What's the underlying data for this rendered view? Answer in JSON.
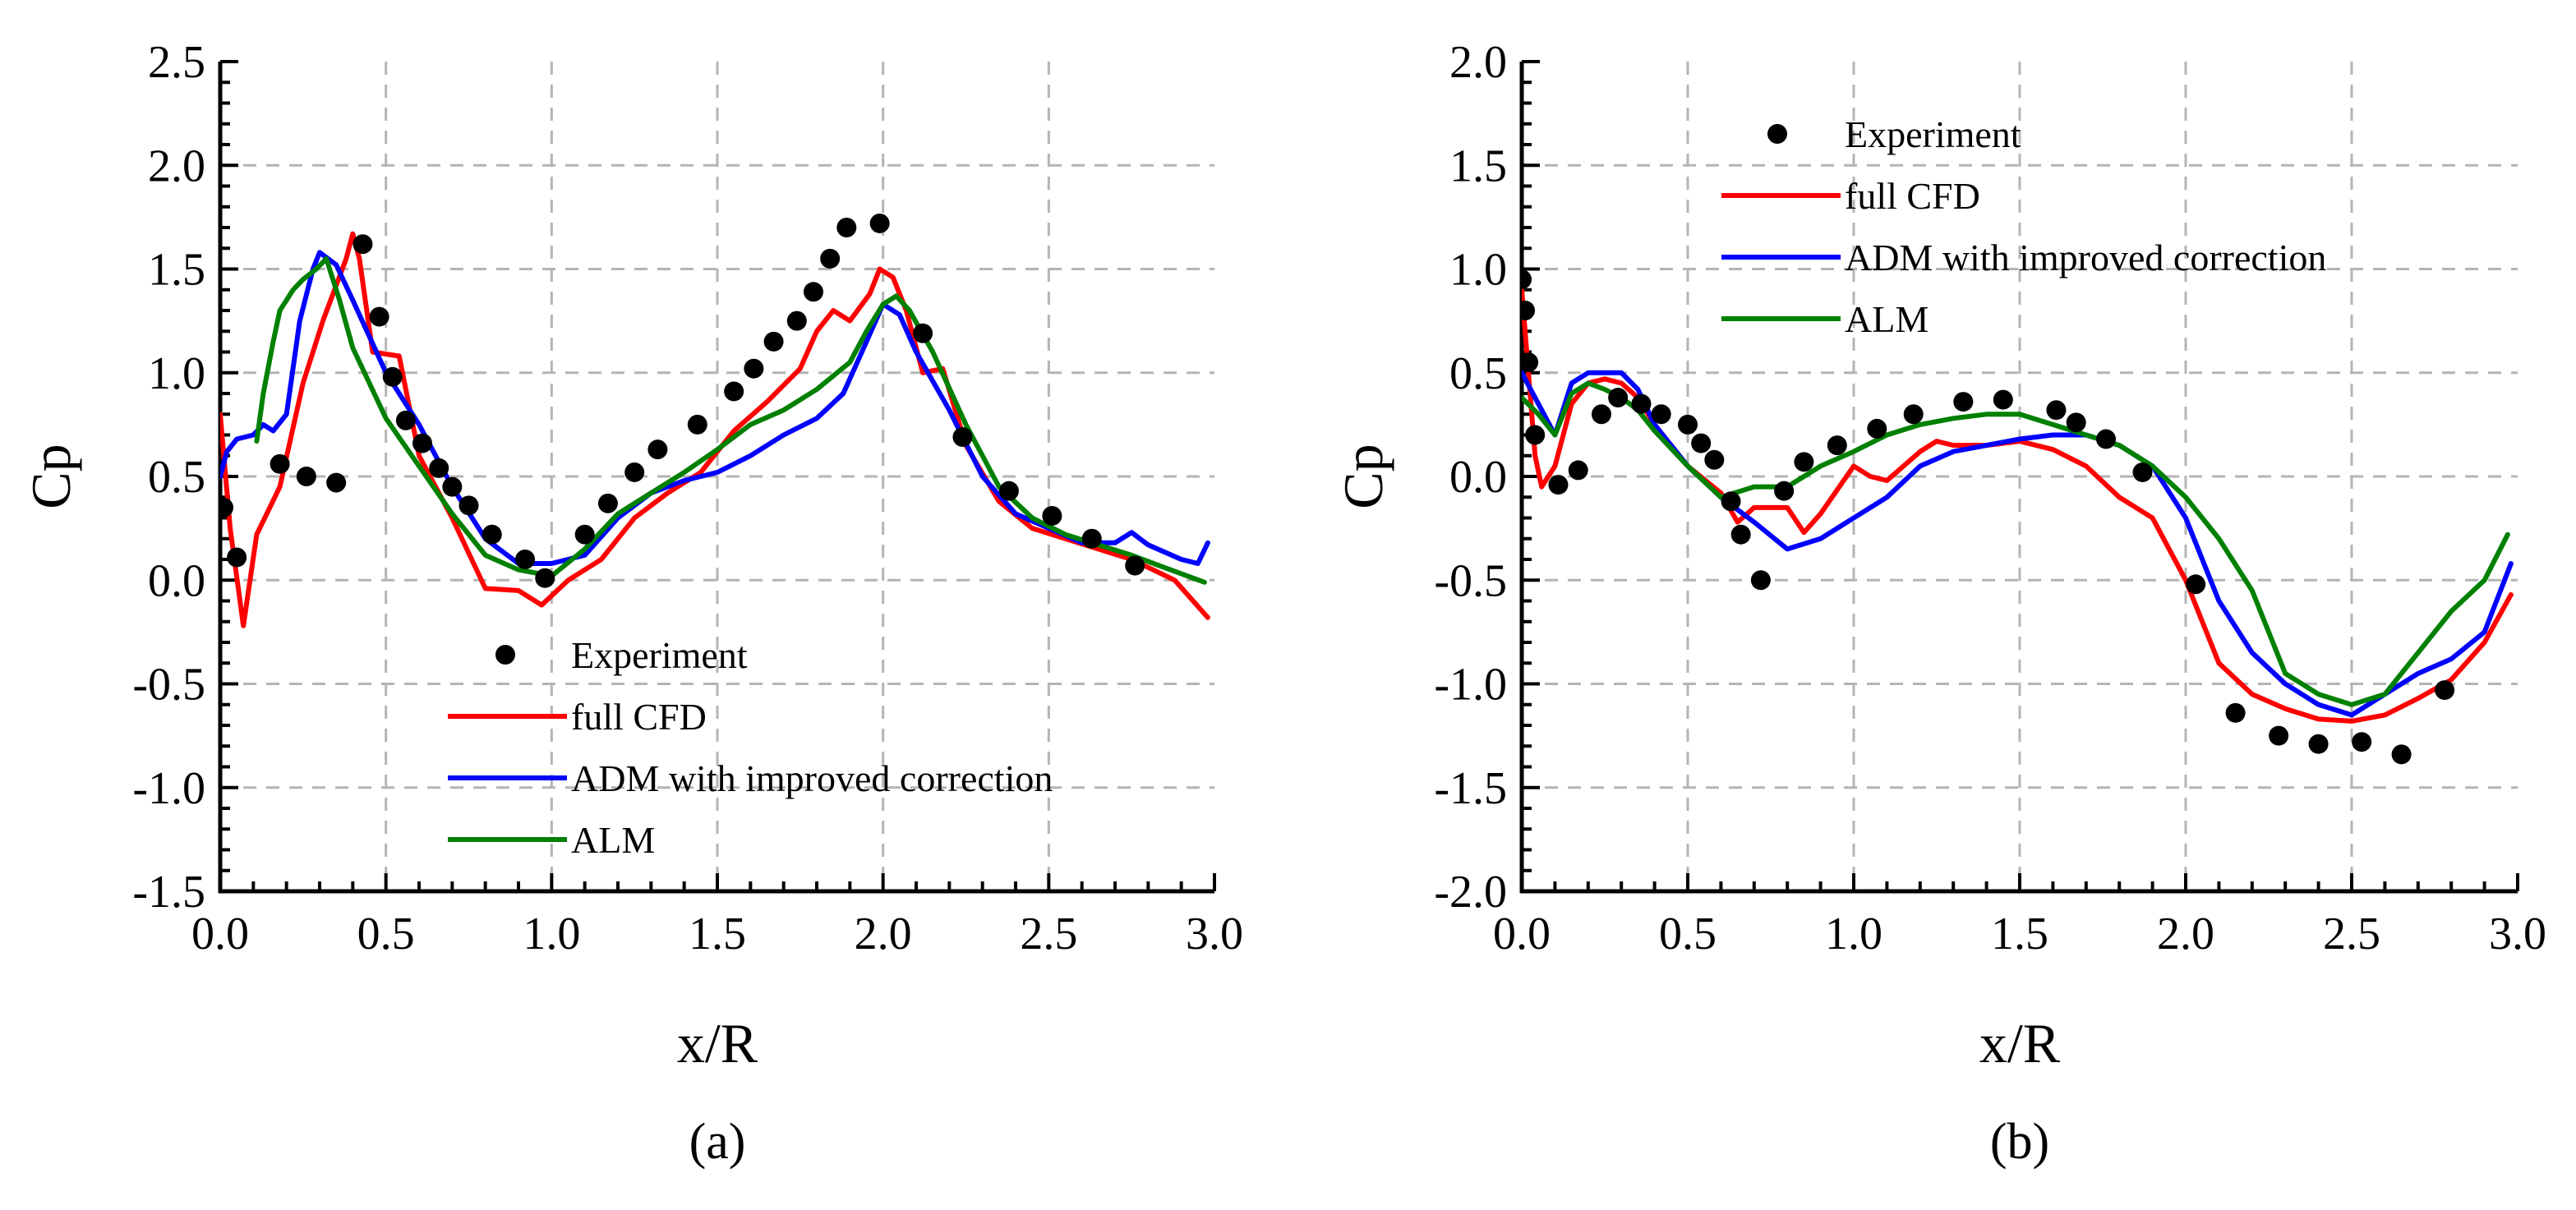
{
  "colors": {
    "experiment": "#000000",
    "full_cfd": "#ff0000",
    "adm": "#0000ff",
    "alm": "#008000",
    "grid": "#b4b4b4"
  },
  "chart_data": [
    {
      "type": "line",
      "panel_label": "(a)",
      "xlabel": "x/R",
      "ylabel": "Cp",
      "xlim": [
        0.0,
        3.0
      ],
      "ylim": [
        -1.5,
        2.5
      ],
      "xticks": [
        0.0,
        0.5,
        1.0,
        1.5,
        2.0,
        2.5,
        3.0
      ],
      "xtick_labels": [
        "0.0",
        "0.5",
        "1.0",
        "1.5",
        "2.0",
        "2.5",
        "3.0"
      ],
      "yticks": [
        -1.5,
        -1.0,
        -0.5,
        0.0,
        0.5,
        1.0,
        1.5,
        2.0,
        2.5
      ],
      "ytick_labels": [
        "-1.5",
        "-1.0",
        "-0.5",
        "0.0",
        "0.5",
        "1.0",
        "1.5",
        "2.0",
        "2.5"
      ],
      "grid": true,
      "legend_position": "bottom-center",
      "series": [
        {
          "name": "Experiment",
          "style": "markers",
          "x": [
            0.01,
            0.05,
            0.18,
            0.26,
            0.35,
            0.43,
            0.48,
            0.52,
            0.56,
            0.61,
            0.66,
            0.7,
            0.75,
            0.82,
            0.92,
            0.98,
            1.1,
            1.17,
            1.25,
            1.32,
            1.44,
            1.55,
            1.61,
            1.67,
            1.74,
            1.79,
            1.84,
            1.89,
            1.99,
            2.12,
            2.24,
            2.38,
            2.51,
            2.63,
            2.76
          ],
          "y": [
            0.35,
            0.11,
            0.56,
            0.5,
            0.47,
            1.62,
            1.27,
            0.98,
            0.77,
            0.66,
            0.54,
            0.45,
            0.36,
            0.22,
            0.1,
            0.01,
            0.22,
            0.37,
            0.52,
            0.63,
            0.75,
            0.91,
            1.02,
            1.15,
            1.25,
            1.39,
            1.55,
            1.7,
            1.72,
            1.19,
            0.69,
            0.43,
            0.31,
            0.2,
            0.07
          ]
        },
        {
          "name": "full CFD",
          "style": "line",
          "x": [
            0.0,
            0.03,
            0.07,
            0.11,
            0.18,
            0.25,
            0.31,
            0.38,
            0.4,
            0.42,
            0.46,
            0.54,
            0.6,
            0.7,
            0.8,
            0.9,
            0.97,
            1.05,
            1.15,
            1.25,
            1.35,
            1.45,
            1.55,
            1.65,
            1.75,
            1.8,
            1.85,
            1.9,
            1.96,
            1.99,
            2.03,
            2.07,
            2.12,
            2.18,
            2.25,
            2.35,
            2.45,
            2.55,
            2.65,
            2.75,
            2.88,
            2.98
          ],
          "y": [
            0.8,
            0.25,
            -0.22,
            0.22,
            0.45,
            0.95,
            1.25,
            1.55,
            1.67,
            1.55,
            1.1,
            1.08,
            0.6,
            0.3,
            -0.04,
            -0.05,
            -0.12,
            0.0,
            0.1,
            0.3,
            0.42,
            0.52,
            0.72,
            0.86,
            1.02,
            1.2,
            1.3,
            1.25,
            1.38,
            1.5,
            1.46,
            1.3,
            1.0,
            1.02,
            0.65,
            0.38,
            0.25,
            0.2,
            0.15,
            0.1,
            0.0,
            -0.18
          ]
        },
        {
          "name": "ADM with improved correction",
          "style": "line",
          "x": [
            0.0,
            0.02,
            0.05,
            0.1,
            0.13,
            0.16,
            0.2,
            0.24,
            0.28,
            0.3,
            0.35,
            0.4,
            0.5,
            0.6,
            0.7,
            0.8,
            0.9,
            1.0,
            1.1,
            1.2,
            1.3,
            1.4,
            1.5,
            1.6,
            1.7,
            1.8,
            1.88,
            1.95,
            2.0,
            2.05,
            2.1,
            2.2,
            2.3,
            2.4,
            2.5,
            2.6,
            2.7,
            2.75,
            2.8,
            2.9,
            2.95,
            2.98
          ],
          "y": [
            0.5,
            0.62,
            0.68,
            0.7,
            0.75,
            0.72,
            0.8,
            1.25,
            1.5,
            1.58,
            1.52,
            1.35,
            1.0,
            0.75,
            0.45,
            0.2,
            0.08,
            0.08,
            0.12,
            0.3,
            0.42,
            0.48,
            0.52,
            0.6,
            0.7,
            0.78,
            0.9,
            1.15,
            1.33,
            1.28,
            1.1,
            0.82,
            0.5,
            0.32,
            0.25,
            0.18,
            0.18,
            0.23,
            0.17,
            0.1,
            0.08,
            0.18
          ]
        },
        {
          "name": "ALM",
          "style": "line",
          "x": [
            0.11,
            0.13,
            0.16,
            0.18,
            0.2,
            0.22,
            0.25,
            0.29,
            0.32,
            0.36,
            0.4,
            0.45,
            0.5,
            0.6,
            0.7,
            0.8,
            0.9,
            1.0,
            1.1,
            1.2,
            1.3,
            1.4,
            1.5,
            1.6,
            1.7,
            1.8,
            1.9,
            1.95,
            2.0,
            2.04,
            2.08,
            2.15,
            2.25,
            2.35,
            2.45,
            2.55,
            2.65,
            2.75,
            2.85,
            2.97
          ],
          "y": [
            0.67,
            0.9,
            1.15,
            1.3,
            1.35,
            1.4,
            1.45,
            1.5,
            1.55,
            1.35,
            1.12,
            0.95,
            0.78,
            0.55,
            0.32,
            0.12,
            0.05,
            0.02,
            0.15,
            0.32,
            0.42,
            0.52,
            0.63,
            0.75,
            0.82,
            0.92,
            1.05,
            1.2,
            1.33,
            1.37,
            1.3,
            1.1,
            0.75,
            0.45,
            0.3,
            0.22,
            0.17,
            0.12,
            0.06,
            -0.01
          ]
        }
      ]
    },
    {
      "type": "line",
      "panel_label": "(b)",
      "xlabel": "x/R",
      "ylabel": "Cp",
      "xlim": [
        0.0,
        3.0
      ],
      "ylim": [
        -2.0,
        2.0
      ],
      "xticks": [
        0.0,
        0.5,
        1.0,
        1.5,
        2.0,
        2.5,
        3.0
      ],
      "xtick_labels": [
        "0.0",
        "0.5",
        "1.0",
        "1.5",
        "2.0",
        "2.5",
        "3.0"
      ],
      "yticks": [
        -2.0,
        -1.5,
        -1.0,
        -0.5,
        0.0,
        0.5,
        1.0,
        1.5,
        2.0
      ],
      "ytick_labels": [
        "-2.0",
        "-1.5",
        "-1.0",
        "-0.5",
        "0.0",
        "0.5",
        "1.0",
        "1.5",
        "2.0"
      ],
      "grid": true,
      "legend_position": "top-left",
      "series": [
        {
          "name": "Experiment",
          "style": "markers",
          "x": [
            0.0,
            0.01,
            0.02,
            0.04,
            0.11,
            0.17,
            0.24,
            0.29,
            0.36,
            0.42,
            0.5,
            0.54,
            0.58,
            0.63,
            0.66,
            0.72,
            0.79,
            0.85,
            0.95,
            1.07,
            1.18,
            1.33,
            1.45,
            1.61,
            1.67,
            1.76,
            1.87,
            2.03,
            2.15,
            2.28,
            2.4,
            2.53,
            2.65,
            2.78
          ],
          "y": [
            0.95,
            0.8,
            0.55,
            0.2,
            -0.04,
            0.03,
            0.3,
            0.38,
            0.35,
            0.3,
            0.25,
            0.16,
            0.08,
            -0.12,
            -0.28,
            -0.5,
            -0.07,
            0.07,
            0.15,
            0.23,
            0.3,
            0.36,
            0.37,
            0.32,
            0.26,
            0.18,
            0.02,
            -0.52,
            -1.14,
            -1.25,
            -1.29,
            -1.28,
            -1.34,
            -1.03
          ]
        },
        {
          "name": "full CFD",
          "style": "line",
          "x": [
            0.0,
            0.02,
            0.04,
            0.06,
            0.1,
            0.15,
            0.2,
            0.25,
            0.3,
            0.35,
            0.4,
            0.5,
            0.6,
            0.65,
            0.7,
            0.75,
            0.8,
            0.85,
            0.9,
            1.0,
            1.05,
            1.1,
            1.2,
            1.25,
            1.3,
            1.4,
            1.5,
            1.6,
            1.7,
            1.8,
            1.9,
            2.0,
            2.1,
            2.2,
            2.3,
            2.4,
            2.5,
            2.6,
            2.7,
            2.8,
            2.9,
            2.98
          ],
          "y": [
            0.9,
            0.5,
            0.1,
            -0.05,
            0.05,
            0.35,
            0.45,
            0.47,
            0.45,
            0.38,
            0.25,
            0.05,
            -0.08,
            -0.22,
            -0.15,
            -0.15,
            -0.15,
            -0.27,
            -0.18,
            0.05,
            0.0,
            -0.02,
            0.12,
            0.17,
            0.15,
            0.15,
            0.17,
            0.13,
            0.05,
            -0.1,
            -0.2,
            -0.5,
            -0.9,
            -1.05,
            -1.12,
            -1.17,
            -1.18,
            -1.15,
            -1.07,
            -0.98,
            -0.8,
            -0.57
          ]
        },
        {
          "name": "ADM with improved correction",
          "style": "line",
          "x": [
            0.0,
            0.05,
            0.1,
            0.15,
            0.2,
            0.25,
            0.3,
            0.35,
            0.4,
            0.5,
            0.6,
            0.7,
            0.8,
            0.9,
            1.0,
            1.1,
            1.2,
            1.3,
            1.4,
            1.5,
            1.6,
            1.7,
            1.8,
            1.9,
            2.0,
            2.1,
            2.2,
            2.3,
            2.4,
            2.5,
            2.6,
            2.7,
            2.8,
            2.9,
            2.98
          ],
          "y": [
            0.5,
            0.35,
            0.2,
            0.45,
            0.5,
            0.5,
            0.5,
            0.42,
            0.25,
            0.05,
            -0.1,
            -0.22,
            -0.35,
            -0.3,
            -0.2,
            -0.1,
            0.05,
            0.12,
            0.15,
            0.18,
            0.2,
            0.2,
            0.15,
            0.05,
            -0.2,
            -0.6,
            -0.85,
            -1.0,
            -1.1,
            -1.15,
            -1.05,
            -0.95,
            -0.88,
            -0.75,
            -0.42
          ]
        },
        {
          "name": "ALM",
          "style": "line",
          "x": [
            0.0,
            0.05,
            0.1,
            0.15,
            0.2,
            0.25,
            0.3,
            0.35,
            0.4,
            0.5,
            0.6,
            0.7,
            0.8,
            0.9,
            1.0,
            1.1,
            1.2,
            1.3,
            1.4,
            1.5,
            1.6,
            1.7,
            1.8,
            1.9,
            2.0,
            2.1,
            2.2,
            2.3,
            2.4,
            2.5,
            2.6,
            2.7,
            2.8,
            2.9,
            2.97
          ],
          "y": [
            0.38,
            0.3,
            0.2,
            0.4,
            0.45,
            0.42,
            0.38,
            0.32,
            0.22,
            0.05,
            -0.1,
            -0.05,
            -0.05,
            0.05,
            0.12,
            0.2,
            0.25,
            0.28,
            0.3,
            0.3,
            0.25,
            0.2,
            0.15,
            0.05,
            -0.1,
            -0.3,
            -0.55,
            -0.95,
            -1.05,
            -1.1,
            -1.05,
            -0.85,
            -0.65,
            -0.5,
            -0.28
          ]
        }
      ]
    }
  ]
}
